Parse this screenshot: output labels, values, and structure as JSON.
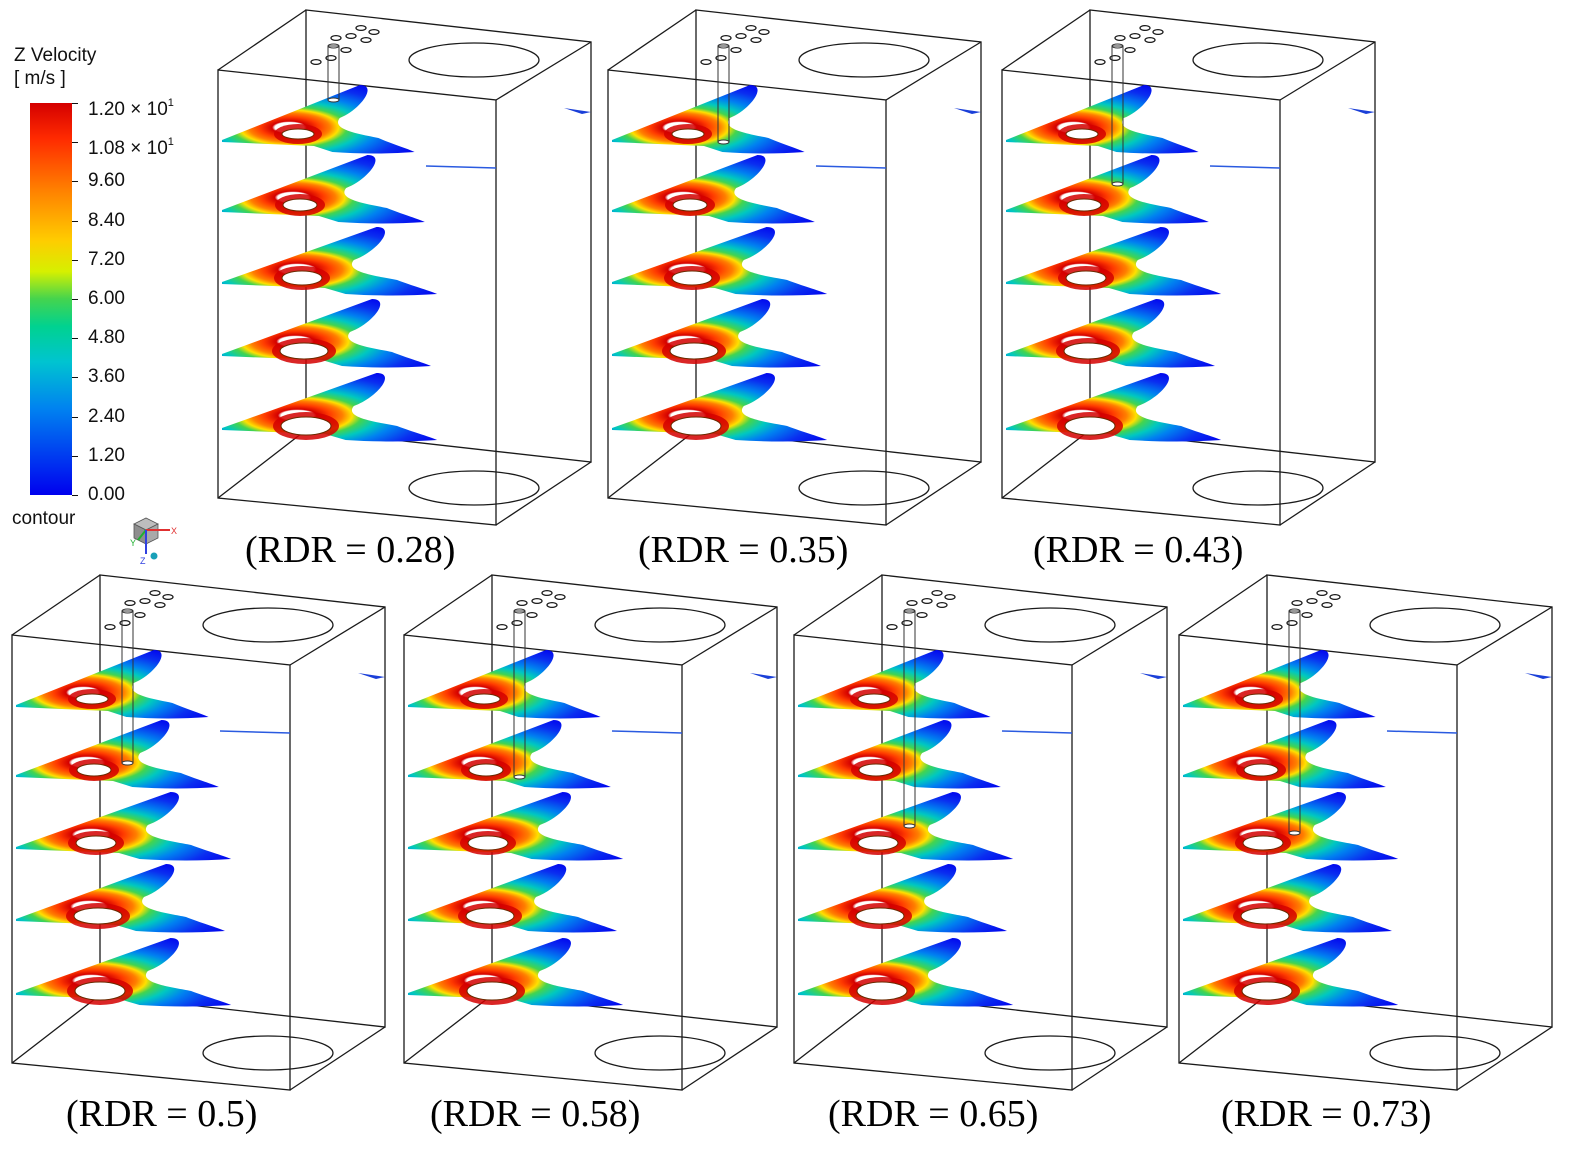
{
  "legend": {
    "title_line1": "Z Velocity",
    "title_line2": "[ m/s ]",
    "ticks": [
      "1.20 × 10",
      "1.08 × 10",
      "9.60",
      "8.40",
      "7.20",
      "6.00",
      "4.80",
      "3.60",
      "2.40",
      "1.20",
      "0.00"
    ],
    "tick_exponents": [
      "1",
      "1",
      "",
      "",
      "",
      "",
      "",
      "",
      "",
      "",
      ""
    ],
    "footer": "contour",
    "triad_axes": [
      "X",
      "Y",
      "Z"
    ]
  },
  "panels": [
    {
      "caption": "(RDR = 0.28)",
      "rod_end_slice": 1
    },
    {
      "caption": "(RDR = 0.35)",
      "rod_end_slice": 1.6
    },
    {
      "caption": "(RDR = 0.43)",
      "rod_end_slice": 2.2
    },
    {
      "caption": "(RDR = 0.5)",
      "rod_end_slice": 2.4
    },
    {
      "caption": "(RDR = 0.58)",
      "rod_end_slice": 2.6
    },
    {
      "caption": "(RDR = 0.65)",
      "rod_end_slice": 3.3
    },
    {
      "caption": "(RDR = 0.73)",
      "rod_end_slice": 3.4
    }
  ],
  "colors": {
    "scale_max": "#d40000",
    "scale_high": "#ff7f00",
    "scale_mid": "#44d44e",
    "scale_low": "#0082f0",
    "scale_min": "#0000ee",
    "box_line": "#1a1a1a"
  }
}
